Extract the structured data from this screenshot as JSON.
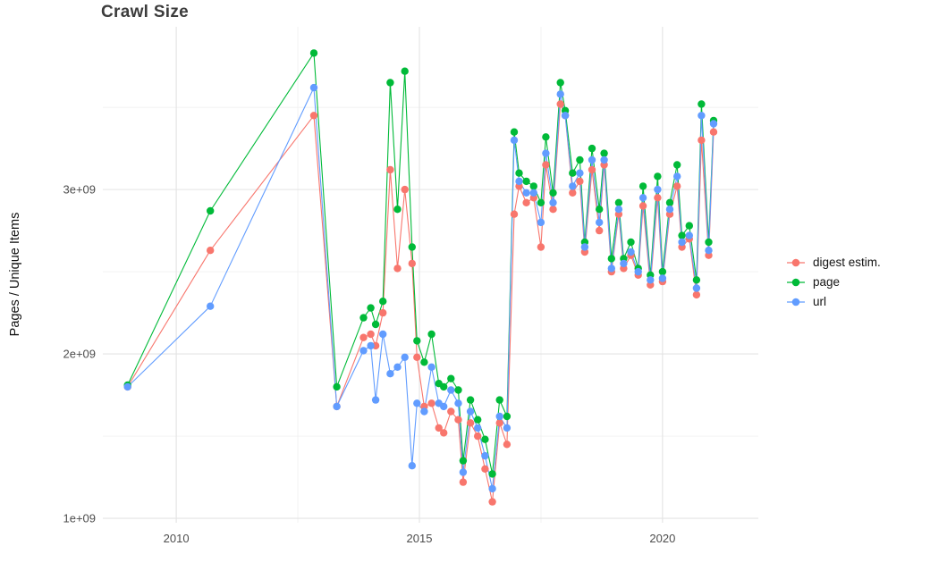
{
  "chart_data": {
    "type": "line",
    "title": "Crawl Size",
    "xlabel": "",
    "ylabel": "Pages / Unique Items",
    "value_unit": "pages (values in units of 1e+09)",
    "xlim": [
      2008.49,
      2021.97
    ],
    "ylim": [
      0.973,
      3.99
    ],
    "legend_position": "right",
    "grid": {
      "x_major": [
        2010,
        2015,
        2020
      ],
      "x_minor": [
        2012.5,
        2017.5
      ],
      "y_major": [
        1,
        2,
        3
      ],
      "y_minor": [
        1.5,
        2.5,
        3.5
      ]
    },
    "xticks": {
      "values": [
        2010,
        2015,
        2020
      ],
      "labels": [
        "2010",
        "2015",
        "2020"
      ]
    },
    "yticks": {
      "values": [
        1,
        2,
        3
      ],
      "labels": [
        "1e+09",
        "2e+09",
        "3e+09"
      ]
    },
    "x": [
      2009.0,
      2010.7,
      2012.83,
      2013.3,
      2013.85,
      2014.0,
      2014.1,
      2014.25,
      2014.4,
      2014.55,
      2014.7,
      2014.85,
      2014.95,
      2015.1,
      2015.25,
      2015.4,
      2015.5,
      2015.65,
      2015.8,
      2015.9,
      2016.05,
      2016.2,
      2016.35,
      2016.5,
      2016.65,
      2016.8,
      2016.95,
      2017.05,
      2017.2,
      2017.35,
      2017.5,
      2017.6,
      2017.75,
      2017.9,
      2018.0,
      2018.15,
      2018.3,
      2018.4,
      2018.55,
      2018.7,
      2018.8,
      2018.95,
      2019.1,
      2019.2,
      2019.35,
      2019.5,
      2019.6,
      2019.75,
      2019.9,
      2020.0,
      2020.15,
      2020.3,
      2020.4,
      2020.55,
      2020.7,
      2020.8,
      2020.95,
      2021.05
    ],
    "series": [
      {
        "name": "digest estim.",
        "color": "#F8766D",
        "values": [
          1.8,
          2.63,
          3.45,
          1.68,
          2.1,
          2.12,
          2.05,
          2.25,
          3.12,
          2.52,
          3.0,
          2.55,
          1.98,
          1.68,
          1.7,
          1.55,
          1.52,
          1.65,
          1.6,
          1.22,
          1.58,
          1.5,
          1.3,
          1.1,
          1.58,
          1.45,
          2.85,
          3.02,
          2.92,
          2.95,
          2.65,
          3.15,
          2.88,
          3.52,
          3.45,
          2.98,
          3.05,
          2.62,
          3.12,
          2.75,
          3.15,
          2.5,
          2.85,
          2.52,
          2.6,
          2.48,
          2.9,
          2.42,
          2.95,
          2.44,
          2.85,
          3.02,
          2.65,
          2.7,
          2.36,
          3.3,
          2.6,
          3.35
        ]
      },
      {
        "name": "page",
        "color": "#00BA38",
        "values": [
          1.81,
          2.87,
          3.83,
          1.8,
          2.22,
          2.28,
          2.18,
          2.32,
          3.65,
          2.88,
          3.72,
          2.65,
          2.08,
          1.95,
          2.12,
          1.82,
          1.8,
          1.85,
          1.78,
          1.35,
          1.72,
          1.6,
          1.48,
          1.27,
          1.72,
          1.62,
          3.35,
          3.1,
          3.05,
          3.02,
          2.92,
          3.32,
          2.98,
          3.65,
          3.48,
          3.1,
          3.18,
          2.68,
          3.25,
          2.88,
          3.22,
          2.58,
          2.92,
          2.58,
          2.68,
          2.52,
          3.02,
          2.48,
          3.08,
          2.5,
          2.92,
          3.15,
          2.72,
          2.78,
          2.45,
          3.52,
          2.68,
          3.42
        ]
      },
      {
        "name": "url",
        "color": "#619CFF",
        "values": [
          1.8,
          2.29,
          3.62,
          1.68,
          2.02,
          2.05,
          1.72,
          2.12,
          1.88,
          1.92,
          1.98,
          1.32,
          1.7,
          1.65,
          1.92,
          1.7,
          1.68,
          1.78,
          1.7,
          1.28,
          1.65,
          1.55,
          1.38,
          1.18,
          1.62,
          1.55,
          3.3,
          3.05,
          2.98,
          2.98,
          2.8,
          3.22,
          2.92,
          3.58,
          3.45,
          3.02,
          3.1,
          2.65,
          3.18,
          2.8,
          3.18,
          2.52,
          2.88,
          2.55,
          2.62,
          2.5,
          2.95,
          2.45,
          3.0,
          2.46,
          2.88,
          3.08,
          2.68,
          2.72,
          2.4,
          3.45,
          2.63,
          3.4
        ]
      }
    ]
  }
}
